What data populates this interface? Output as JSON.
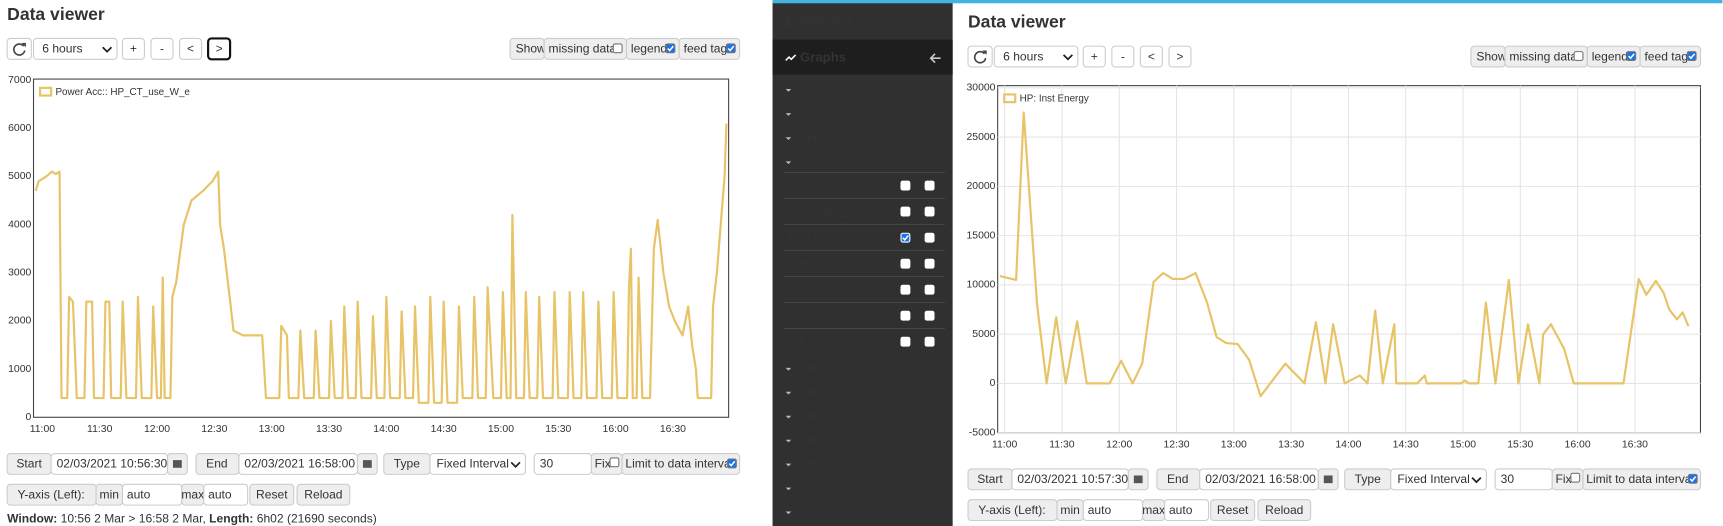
{
  "panels": [
    {
      "title": "Data viewer",
      "range": "6 hours",
      "nav": [
        "+",
        "-",
        "<",
        ">"
      ],
      "show": "Show",
      "options": [
        {
          "label": "missing data:",
          "checked": false
        },
        {
          "label": "legend:",
          "checked": true
        },
        {
          "label": "feed tag:",
          "checked": true
        }
      ],
      "controls": {
        "start_label": "Start",
        "start": "02/03/2021 10:56:30",
        "end_label": "End",
        "end": "02/03/2021 16:58:00",
        "type_label": "Type",
        "type": "Fixed Interval",
        "interval": "30",
        "fix": "Fix",
        "fix_checked": false,
        "limit": "Limit to data interval",
        "limit_checked": true,
        "yaxis": "Y-axis (Left):",
        "min_label": "min",
        "min": "auto",
        "max_label": "max",
        "max": "auto",
        "reset": "Reset",
        "reload": "Reload"
      },
      "window": [
        "Window:",
        " 10:56 2 Mar > 16:58 2 Mar, ",
        "Length:",
        " 6h02 (21690 seconds)"
      ]
    },
    {
      "title": "Data viewer",
      "range": "6 hours",
      "nav": [
        "+",
        "-",
        "<",
        ">"
      ],
      "show": "Show",
      "options": [
        {
          "label": "missing data:",
          "checked": false
        },
        {
          "label": "legend:",
          "checked": true
        },
        {
          "label": "feed tag:",
          "checked": true
        }
      ],
      "controls": {
        "start_label": "Start",
        "start": "02/03/2021 10:57:30",
        "end_label": "End",
        "end": "02/03/2021 16:58:00",
        "type_label": "Type",
        "type": "Fixed Interval",
        "interval": "30",
        "fix": "Fix",
        "fix_checked": false,
        "limit": "Limit to data interval",
        "limit_checked": true,
        "yaxis": "Y-axis (Left):",
        "min_label": "min",
        "min": "auto",
        "max_label": "max",
        "max": "auto",
        "reset": "Reset",
        "reload": "Reload"
      }
    }
  ],
  "sidebar": {
    "brand": "Emoncms",
    "section": "Graphs",
    "groups_before": [
      "Temp",
      "Power Acc",
      "4-House 557",
      "HP"
    ],
    "feeds": [
      {
        "name": "Inst Vol",
        "left": false,
        "right": false
      },
      {
        "name": "Tot Energy",
        "left": false,
        "right": false
      },
      {
        "name": "Inst Energy",
        "left": true,
        "right": false
      },
      {
        "name": "Ret Temp",
        "left": false,
        "right": false
      },
      {
        "name": "Sup Temp",
        "left": false,
        "right": false
      },
      {
        "name": "Tot Vol",
        "left": false,
        "right": false
      },
      {
        "name": "HP_use_kWh",
        "left": false,
        "right": false
      }
    ],
    "groups_after": [
      "1-House 553",
      "2-House 556",
      "3-House 554",
      "6-House 555",
      "5-House 558",
      "Meters",
      "Sol T"
    ]
  },
  "chart_data": [
    {
      "type": "line",
      "grid": false,
      "legend": "upper left",
      "x": [
        "10:56:30",
        "10:58",
        "11:02",
        "11:05",
        "11:07",
        "11:09",
        "11:10",
        "11:13",
        "11:14",
        "11:16",
        "11:18",
        "11:22",
        "11:23",
        "11:26",
        "11:27",
        "11:32",
        "11:33",
        "11:35",
        "11:36",
        "11:41",
        "11:42",
        "11:44",
        "11:49",
        "11:50",
        "11:52",
        "11:57",
        "11:58",
        "12:00",
        "12:02",
        "12:03",
        "12:04",
        "12:07",
        "12:08",
        "12:10",
        "12:14",
        "12:18",
        "12:24",
        "12:29",
        "12:32",
        "12:33",
        "12:35",
        "12:38",
        "12:40",
        "12:45",
        "12:55",
        "12:57",
        "13:04",
        "13:05",
        "13:08",
        "13:09",
        "13:14",
        "13:15",
        "13:17",
        "13:22",
        "13:23",
        "13:25",
        "13:30",
        "13:31",
        "13:33",
        "13:37",
        "13:38",
        "13:40",
        "13:44",
        "13:45",
        "13:47",
        "13:52",
        "13:53",
        "13:55",
        "13:59",
        "14:00",
        "14:02",
        "14:07",
        "14:08",
        "14:10",
        "14:14",
        "14:15",
        "14:17",
        "14:22",
        "14:23",
        "14:25",
        "14:29",
        "14:30",
        "14:32",
        "14:37",
        "14:38",
        "14:40",
        "14:45",
        "14:46",
        "14:48",
        "14:52",
        "14:53",
        "14:56",
        "15:00",
        "15:01",
        "15:03",
        "15:05",
        "15:06",
        "15:08",
        "15:12",
        "15:13",
        "15:15",
        "15:19",
        "15:20",
        "15:22",
        "15:27",
        "15:28",
        "15:30",
        "15:35",
        "15:36",
        "15:38",
        "15:42",
        "15:43",
        "15:45",
        "15:50",
        "15:51",
        "15:53",
        "15:58",
        "15:59",
        "16:01",
        "16:06",
        "16:07",
        "16:08",
        "16:09",
        "16:11",
        "16:12",
        "16:14",
        "16:18",
        "16:20",
        "16:22",
        "16:25",
        "16:28",
        "16:31",
        "16:35",
        "16:38",
        "16:40",
        "16:42",
        "16:43",
        "16:50",
        "16:51",
        "16:53",
        "16:57",
        "16:58"
      ],
      "series": [
        {
          "name": "Power Acc:: HP_CT_use_W_e",
          "color": "#e8c468",
          "values": [
            4700,
            4900,
            5000,
            5100,
            5050,
            5100,
            400,
            400,
            2500,
            2400,
            400,
            400,
            2400,
            2400,
            400,
            400,
            2400,
            2400,
            400,
            400,
            2400,
            400,
            400,
            2500,
            400,
            400,
            2300,
            400,
            400,
            2900,
            400,
            400,
            2500,
            2800,
            4000,
            4500,
            4700,
            4900,
            5100,
            4000,
            3500,
            2500,
            1800,
            1700,
            1700,
            400,
            400,
            1900,
            1700,
            400,
            400,
            1800,
            400,
            400,
            1800,
            400,
            400,
            2000,
            400,
            400,
            2300,
            400,
            400,
            2400,
            400,
            400,
            2100,
            400,
            400,
            2500,
            400,
            400,
            2200,
            400,
            400,
            2300,
            300,
            300,
            2500,
            300,
            300,
            2400,
            300,
            300,
            2300,
            400,
            400,
            2500,
            400,
            400,
            2700,
            400,
            400,
            2600,
            400,
            400,
            4200,
            400,
            400,
            2600,
            400,
            400,
            2500,
            400,
            400,
            2600,
            400,
            400,
            2600,
            400,
            400,
            2600,
            400,
            400,
            2400,
            400,
            400,
            2600,
            400,
            400,
            2700,
            3500,
            400,
            400,
            2900,
            400,
            400,
            3500,
            4100,
            3000,
            2300,
            2000,
            1700,
            2300,
            1500,
            1000,
            400,
            400,
            2300,
            3000,
            5000,
            6100
          ]
        }
      ],
      "xlim": [
        "10:56:30",
        "16:58:00"
      ],
      "xticks": [
        "11:00",
        "11:30",
        "12:00",
        "12:30",
        "13:00",
        "13:30",
        "14:00",
        "14:30",
        "15:00",
        "15:30",
        "16:00",
        "16:30"
      ],
      "ylim": [
        0,
        7000
      ],
      "yticks": [
        0,
        1000,
        2000,
        3000,
        4000,
        5000,
        6000,
        7000
      ]
    },
    {
      "type": "line",
      "grid": true,
      "legend": "upper left",
      "x": [
        "10:57:30",
        "11:06",
        "11:10",
        "11:17",
        "11:22",
        "11:27",
        "11:32",
        "11:38",
        "11:43",
        "11:55",
        "12:01",
        "12:07",
        "12:12",
        "12:18",
        "12:23",
        "12:28",
        "12:34",
        "12:40",
        "12:46",
        "12:51",
        "12:56",
        "13:02",
        "13:08",
        "13:14",
        "13:21",
        "13:27",
        "13:37",
        "13:43",
        "13:48",
        "13:52",
        "13:58",
        "14:06",
        "14:10",
        "14:14",
        "14:18",
        "14:24",
        "14:25",
        "14:36",
        "14:40",
        "14:41",
        "14:59",
        "15:01",
        "15:03",
        "15:08",
        "15:12",
        "15:17",
        "15:24",
        "15:29",
        "15:34",
        "15:40",
        "15:42",
        "15:46",
        "15:53",
        "15:58",
        "16:24",
        "16:32",
        "16:36",
        "16:41",
        "16:45",
        "16:48",
        "16:52",
        "16:55",
        "16:58"
      ],
      "series": [
        {
          "name": "HP: Inst Energy",
          "color": "#e8c468",
          "values": [
            10900,
            10500,
            27500,
            8000,
            0,
            6700,
            0,
            6300,
            0,
            0,
            2300,
            0,
            2000,
            10300,
            11200,
            10600,
            10600,
            11200,
            8200,
            4700,
            4100,
            4000,
            2400,
            -1300,
            500,
            2000,
            0,
            6200,
            0,
            6000,
            0,
            800,
            0,
            7400,
            0,
            6000,
            0,
            0,
            800,
            0,
            0,
            300,
            0,
            0,
            8200,
            0,
            10500,
            0,
            6000,
            0,
            5000,
            6000,
            3500,
            0,
            0,
            10600,
            9000,
            10400,
            9200,
            7500,
            6500,
            7200,
            5800
          ]
        }
      ],
      "xlim": [
        "10:57:30",
        "16:58:00"
      ],
      "xticks": [
        "11:00",
        "11:30",
        "12:00",
        "12:30",
        "13:00",
        "13:30",
        "14:00",
        "14:30",
        "15:00",
        "15:30",
        "16:00",
        "16:30"
      ],
      "ylim": [
        -5000,
        30000
      ],
      "yticks": [
        -5000,
        0,
        5000,
        10000,
        15000,
        20000,
        25000,
        30000
      ]
    }
  ]
}
